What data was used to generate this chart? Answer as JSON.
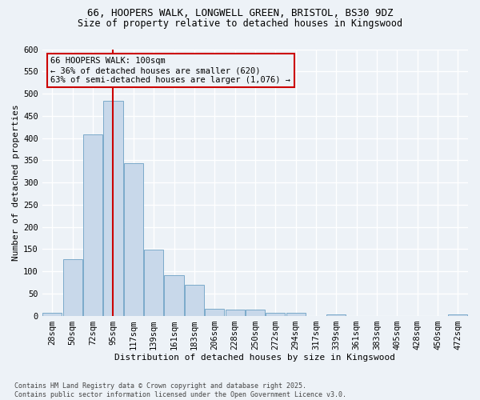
{
  "title_line1": "66, HOOPERS WALK, LONGWELL GREEN, BRISTOL, BS30 9DZ",
  "title_line2": "Size of property relative to detached houses in Kingswood",
  "xlabel": "Distribution of detached houses by size in Kingswood",
  "ylabel": "Number of detached properties",
  "categories": [
    "28sqm",
    "50sqm",
    "72sqm",
    "95sqm",
    "117sqm",
    "139sqm",
    "161sqm",
    "183sqm",
    "206sqm",
    "228sqm",
    "250sqm",
    "272sqm",
    "294sqm",
    "317sqm",
    "339sqm",
    "361sqm",
    "383sqm",
    "405sqm",
    "428sqm",
    "450sqm",
    "472sqm"
  ],
  "values": [
    7,
    128,
    408,
    483,
    343,
    148,
    91,
    70,
    16,
    14,
    13,
    7,
    6,
    0,
    3,
    0,
    0,
    0,
    0,
    0,
    3
  ],
  "bar_color": "#c8d8ea",
  "bar_edgecolor": "#7baaca",
  "vline_x_index": 3,
  "vline_color": "#cc0000",
  "ylim": [
    0,
    600
  ],
  "yticks": [
    0,
    50,
    100,
    150,
    200,
    250,
    300,
    350,
    400,
    450,
    500,
    550,
    600
  ],
  "annotation_text": "66 HOOPERS WALK: 100sqm\n← 36% of detached houses are smaller (620)\n63% of semi-detached houses are larger (1,076) →",
  "annotation_box_edgecolor": "#cc0000",
  "footer_text": "Contains HM Land Registry data © Crown copyright and database right 2025.\nContains public sector information licensed under the Open Government Licence v3.0.",
  "background_color": "#edf2f7",
  "grid_color": "#ffffff",
  "title_fontsize": 9,
  "axis_fontsize": 7.5,
  "ylabel_fontsize": 8,
  "xlabel_fontsize": 8
}
